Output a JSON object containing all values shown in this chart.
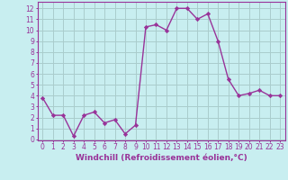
{
  "x": [
    0,
    1,
    2,
    3,
    4,
    5,
    6,
    7,
    8,
    9,
    10,
    11,
    12,
    13,
    14,
    15,
    16,
    17,
    18,
    19,
    20,
    21,
    22,
    23
  ],
  "y": [
    3.8,
    2.2,
    2.2,
    0.3,
    2.2,
    2.5,
    1.5,
    1.8,
    0.5,
    1.3,
    10.3,
    10.5,
    10.0,
    12.0,
    12.0,
    11.0,
    11.5,
    9.0,
    5.5,
    4.0,
    4.2,
    4.5,
    4.0,
    4.0
  ],
  "line_color": "#993399",
  "marker": "D",
  "marker_size": 2.2,
  "bg_color": "#c8eef0",
  "plot_bg": "#c8eef0",
  "grid_color": "#aacccc",
  "xlabel": "Windchill (Refroidissement éolien,°C)",
  "xlim": [
    -0.5,
    23.5
  ],
  "ylim": [
    -0.1,
    12.6
  ],
  "xticks": [
    0,
    1,
    2,
    3,
    4,
    5,
    6,
    7,
    8,
    9,
    10,
    11,
    12,
    13,
    14,
    15,
    16,
    17,
    18,
    19,
    20,
    21,
    22,
    23
  ],
  "yticks": [
    0,
    1,
    2,
    3,
    4,
    5,
    6,
    7,
    8,
    9,
    10,
    11,
    12
  ],
  "tick_color": "#993399",
  "label_color": "#993399",
  "font_size": 5.5,
  "xlabel_fontsize": 6.5,
  "linewidth": 1.0
}
